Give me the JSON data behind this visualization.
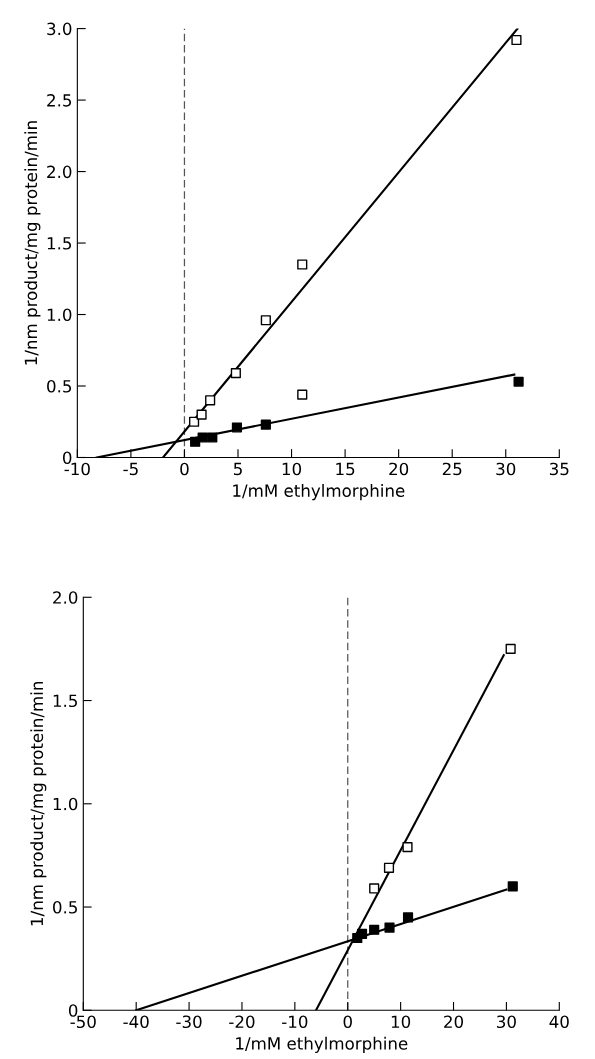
{
  "chart_data": [
    {
      "type": "scatter",
      "xlabel": "1/mM ethylmorphine",
      "ylabel": "1/nm product/mg protein/min",
      "grid": false,
      "xlim": [
        -10,
        35
      ],
      "xticks": [
        -10,
        -5,
        0,
        5,
        10,
        15,
        20,
        25,
        30,
        35
      ],
      "ylim": [
        0,
        3.0
      ],
      "yticks": [
        0,
        {
          "value": 0.5,
          "label": "0.5"
        },
        {
          "value": 1.0,
          "label": "1.0"
        },
        {
          "value": 1.5,
          "label": "1.5"
        },
        {
          "value": 2.0,
          "label": "2.0"
        },
        {
          "value": 2.5,
          "label": "2.5"
        },
        {
          "value": 3.0,
          "label": "3.0"
        }
      ],
      "ref_lines": [
        {
          "axis": "x",
          "value": 0,
          "label": null,
          "color": "#555555",
          "line_style": "dashed"
        }
      ],
      "series": [
        {
          "marker": "square",
          "color": "#ffffff",
          "x": [
            0.9,
            1.6,
            2.4,
            4.8,
            7.6,
            11.0,
            11.0,
            31.0
          ],
          "values": [
            0.25,
            0.3,
            0.4,
            0.59,
            0.96,
            0.44,
            1.35,
            2.92
          ]
        },
        {
          "marker": "square",
          "color": "#000000",
          "x": [
            1.0,
            1.7,
            2.6,
            4.9,
            7.6,
            31.2
          ],
          "values": [
            0.11,
            0.14,
            0.14,
            0.21,
            0.23,
            0.53
          ]
        },
        {
          "type": "line",
          "marker": "none",
          "color": "#000000",
          "x": [
            -2.0,
            31.1
          ],
          "values": [
            0,
            3.0
          ]
        },
        {
          "type": "line",
          "marker": "none",
          "color": "#000000",
          "x": [
            -8.2,
            30.8
          ],
          "values": [
            0,
            0.58
          ]
        }
      ]
    },
    {
      "type": "scatter",
      "xlabel": "1/mM ethylmorphine",
      "ylabel": "1/nm product/mg protein/min",
      "grid": false,
      "xlim": [
        -50,
        40
      ],
      "xticks": [
        -50,
        -40,
        -30,
        -20,
        -10,
        0,
        10,
        20,
        30,
        40
      ],
      "ylim": [
        0,
        2.0
      ],
      "yticks": [
        0,
        {
          "value": 0.5,
          "label": "0.5"
        },
        {
          "value": 1.0,
          "label": "1.0"
        },
        {
          "value": 1.5,
          "label": "1.5"
        },
        {
          "value": 2.0,
          "label": "2.0"
        }
      ],
      "ref_lines": [
        {
          "axis": "x",
          "value": 0,
          "label": null,
          "color": "#555555",
          "line_style": "dashed"
        }
      ],
      "series": [
        {
          "marker": "square",
          "color": "#ffffff",
          "x": [
            5.0,
            7.8,
            11.3,
            30.8
          ],
          "values": [
            0.59,
            0.69,
            0.79,
            1.75
          ]
        },
        {
          "marker": "square",
          "color": "#000000",
          "x": [
            1.8,
            2.7,
            5.0,
            7.9,
            11.4,
            31.2
          ],
          "values": [
            0.35,
            0.37,
            0.39,
            0.4,
            0.45,
            0.6
          ]
        },
        {
          "type": "line",
          "marker": "none",
          "color": "#000000",
          "x": [
            -6.0,
            29.5
          ],
          "values": [
            0,
            1.72
          ]
        },
        {
          "type": "line",
          "marker": "none",
          "color": "#000000",
          "x": [
            -40.0,
            30.0
          ],
          "values": [
            0,
            0.585
          ]
        }
      ]
    }
  ]
}
